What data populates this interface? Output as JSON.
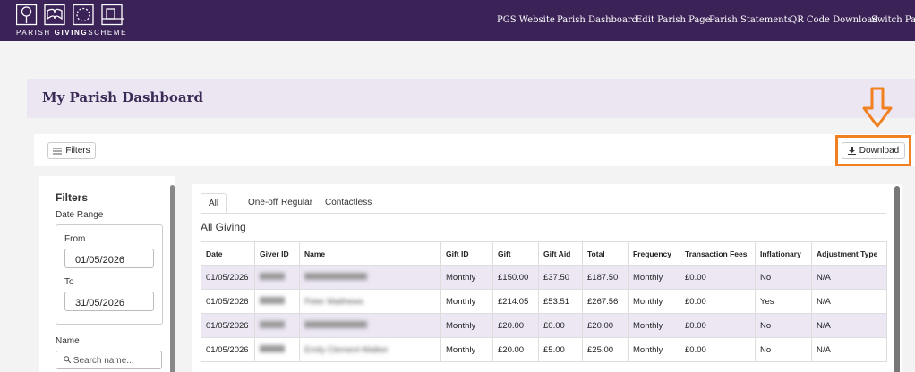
{
  "header": {
    "logo": {
      "word1": "PARISH",
      "word2": "GIVING",
      "word3": "SCHEME"
    },
    "nav": [
      "PGS Website",
      "Parish Dashboard",
      "Edit Parish Page",
      "Parish Statements",
      "QR Code Download",
      "Switch Paris"
    ]
  },
  "page_title": "My Parish Dashboard",
  "toolbar": {
    "filters_button": "Filters",
    "download_button": "Download"
  },
  "sidebar": {
    "title": "Filters",
    "date_range": "Date Range",
    "from_label": "From",
    "from_value": "01/05/2026",
    "to_label": "To",
    "to_value": "31/05/2026",
    "name_label": "Name",
    "name_placeholder": "Search name..."
  },
  "tabs": [
    "All",
    "One-off",
    "Regular",
    "Contactless"
  ],
  "section_title": "All Giving",
  "table": {
    "columns": [
      "Date",
      "Giver ID",
      "Name",
      "Gift ID",
      "Gift",
      "Gift Aid",
      "Total",
      "Frequency",
      "Transaction Fees",
      "Inflationary",
      "Adjustment Type"
    ],
    "rows": [
      [
        "01/05/2026",
        null,
        null,
        "Monthly",
        "£150.00",
        "£37.50",
        "£187.50",
        "Monthly",
        "£0.00",
        "No",
        "N/A"
      ],
      [
        "01/05/2026",
        null,
        "Peter Matthews",
        "Monthly",
        "£214.05",
        "£53.51",
        "£267.56",
        "Monthly",
        "£0.00",
        "Yes",
        "N/A"
      ],
      [
        "01/05/2026",
        null,
        null,
        "Monthly",
        "£20.00",
        "£0.00",
        "£20.00",
        "Monthly",
        "£0.00",
        "No",
        "N/A"
      ],
      [
        "01/05/2026",
        null,
        "Emily Clement-Walker",
        "Monthly",
        "£20.00",
        "£5.00",
        "£25.00",
        "Monthly",
        "£0.00",
        "No",
        "N/A"
      ]
    ]
  }
}
